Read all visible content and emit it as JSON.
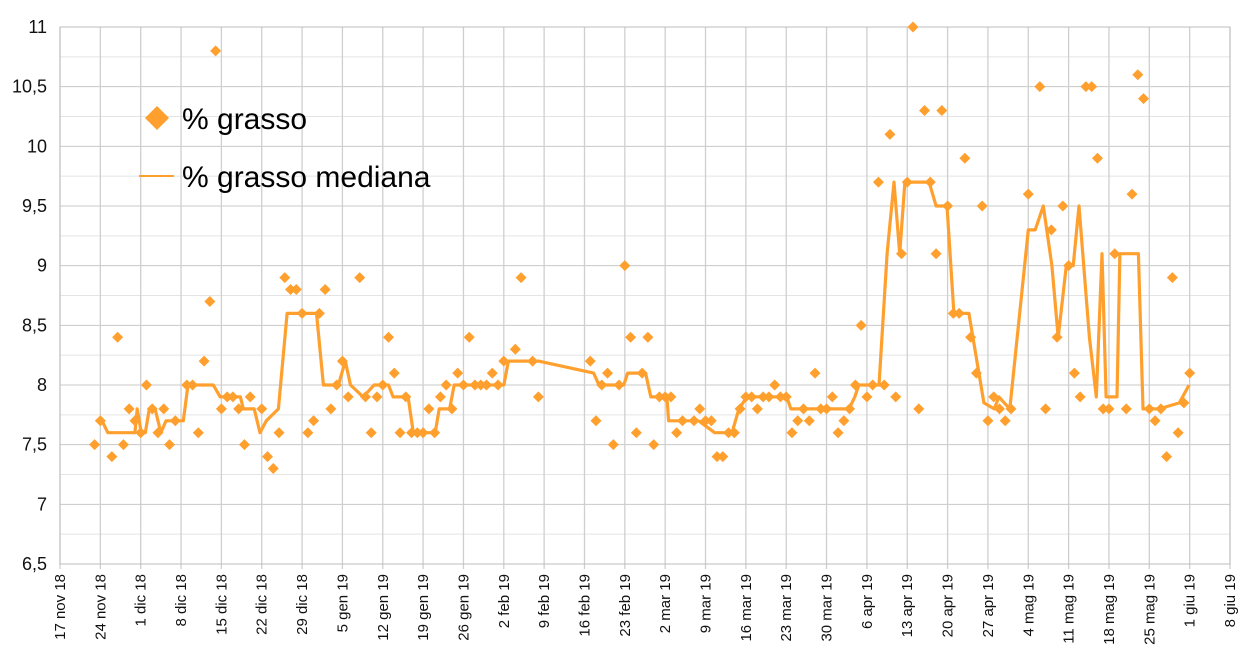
{
  "chart_data": {
    "type": "scatter+line",
    "title": "",
    "xlabel": "",
    "ylabel": "",
    "x_unit": "days since 17 nov 18",
    "xlim": [
      0,
      203
    ],
    "ylim": [
      6.5,
      11
    ],
    "grid": true,
    "legend_position": "top-left",
    "accent_color": "#ffa02e",
    "y_ticks": [
      {
        "value": 6.5,
        "label": "6,5"
      },
      {
        "value": 7,
        "label": "7"
      },
      {
        "value": 7.5,
        "label": "7,5"
      },
      {
        "value": 8,
        "label": "8"
      },
      {
        "value": 8.5,
        "label": "8,5"
      },
      {
        "value": 9,
        "label": "9"
      },
      {
        "value": 9.5,
        "label": "9,5"
      },
      {
        "value": 10,
        "label": "10"
      },
      {
        "value": 10.5,
        "label": "10,5"
      },
      {
        "value": 11,
        "label": "11"
      }
    ],
    "x_ticks": [
      {
        "value": 0,
        "label": "17 nov 18"
      },
      {
        "value": 7,
        "label": "24 nov 18"
      },
      {
        "value": 14,
        "label": "1 dic 18"
      },
      {
        "value": 21,
        "label": "8 dic 18"
      },
      {
        "value": 28,
        "label": "15 dic 18"
      },
      {
        "value": 35,
        "label": "22 dic 18"
      },
      {
        "value": 42,
        "label": "29 dic 18"
      },
      {
        "value": 49,
        "label": "5 gen 19"
      },
      {
        "value": 56,
        "label": "12 gen 19"
      },
      {
        "value": 63,
        "label": "19 gen 19"
      },
      {
        "value": 70,
        "label": "26 gen 19"
      },
      {
        "value": 77,
        "label": "2 feb 19"
      },
      {
        "value": 84,
        "label": "9 feb 19"
      },
      {
        "value": 91,
        "label": "16 feb 19"
      },
      {
        "value": 98,
        "label": "23 feb 19"
      },
      {
        "value": 105,
        "label": "2 mar 19"
      },
      {
        "value": 112,
        "label": "9 mar 19"
      },
      {
        "value": 119,
        "label": "16 mar 19"
      },
      {
        "value": 126,
        "label": "23 mar 19"
      },
      {
        "value": 133,
        "label": "30 mar 19"
      },
      {
        "value": 140,
        "label": "6 apr 19"
      },
      {
        "value": 147,
        "label": "13 apr 19"
      },
      {
        "value": 154,
        "label": "20 apr 19"
      },
      {
        "value": 161,
        "label": "27 apr 19"
      },
      {
        "value": 168,
        "label": "4 mag 19"
      },
      {
        "value": 175,
        "label": "11 mag 19"
      },
      {
        "value": 182,
        "label": "18 mag 19"
      },
      {
        "value": 189,
        "label": "25 mag 19"
      },
      {
        "value": 196,
        "label": "1 giu 19"
      },
      {
        "value": 203,
        "label": "8 giu 19"
      }
    ],
    "series": [
      {
        "name": "% grasso",
        "kind": "scatter",
        "marker": "diamond",
        "points": [
          [
            6,
            7.5
          ],
          [
            7,
            7.7
          ],
          [
            9,
            7.4
          ],
          [
            10,
            8.4
          ],
          [
            11,
            7.5
          ],
          [
            12,
            7.8
          ],
          [
            13,
            7.7
          ],
          [
            14,
            7.6
          ],
          [
            15,
            8.0
          ],
          [
            16,
            7.8
          ],
          [
            17,
            7.6
          ],
          [
            18,
            7.8
          ],
          [
            19,
            7.5
          ],
          [
            20,
            7.7
          ],
          [
            22,
            8.0
          ],
          [
            23,
            8.0
          ],
          [
            24,
            7.6
          ],
          [
            25,
            8.2
          ],
          [
            26,
            8.7
          ],
          [
            27,
            10.8
          ],
          [
            28,
            7.8
          ],
          [
            29,
            7.9
          ],
          [
            30,
            7.9
          ],
          [
            31,
            7.8
          ],
          [
            32,
            7.5
          ],
          [
            33,
            7.9
          ],
          [
            35,
            7.8
          ],
          [
            36,
            7.4
          ],
          [
            37,
            7.3
          ],
          [
            38,
            7.6
          ],
          [
            39,
            8.9
          ],
          [
            40,
            8.8
          ],
          [
            41,
            8.8
          ],
          [
            42,
            8.6
          ],
          [
            43,
            7.6
          ],
          [
            44,
            7.7
          ],
          [
            45,
            8.6
          ],
          [
            46,
            8.8
          ],
          [
            47,
            7.8
          ],
          [
            48,
            8.0
          ],
          [
            49,
            8.2
          ],
          [
            50,
            7.9
          ],
          [
            52,
            8.9
          ],
          [
            53,
            7.9
          ],
          [
            54,
            7.6
          ],
          [
            55,
            7.9
          ],
          [
            56,
            8.0
          ],
          [
            57,
            8.4
          ],
          [
            58,
            8.1
          ],
          [
            59,
            7.6
          ],
          [
            60,
            7.9
          ],
          [
            61,
            7.6
          ],
          [
            62,
            7.6
          ],
          [
            63,
            7.6
          ],
          [
            64,
            7.8
          ],
          [
            65,
            7.6
          ],
          [
            66,
            7.9
          ],
          [
            67,
            8.0
          ],
          [
            68,
            7.8
          ],
          [
            69,
            8.1
          ],
          [
            70,
            8.0
          ],
          [
            71,
            8.4
          ],
          [
            72,
            8.0
          ],
          [
            73,
            8.0
          ],
          [
            74,
            8.0
          ],
          [
            75,
            8.1
          ],
          [
            76,
            8.0
          ],
          [
            77,
            8.2
          ],
          [
            79,
            8.3
          ],
          [
            80,
            8.9
          ],
          [
            82,
            8.2
          ],
          [
            83,
            7.9
          ],
          [
            92,
            8.2
          ],
          [
            93,
            7.7
          ],
          [
            94,
            8.0
          ],
          [
            95,
            8.1
          ],
          [
            96,
            7.5
          ],
          [
            97,
            8.0
          ],
          [
            98,
            9.0
          ],
          [
            99,
            8.4
          ],
          [
            100,
            7.6
          ],
          [
            101,
            8.1
          ],
          [
            102,
            8.4
          ],
          [
            103,
            7.5
          ],
          [
            104,
            7.9
          ],
          [
            105,
            7.9
          ],
          [
            106,
            7.9
          ],
          [
            107,
            7.6
          ],
          [
            108,
            7.7
          ],
          [
            110,
            7.7
          ],
          [
            111,
            7.8
          ],
          [
            112,
            7.7
          ],
          [
            113,
            7.7
          ],
          [
            114,
            7.4
          ],
          [
            115,
            7.4
          ],
          [
            116,
            7.6
          ],
          [
            117,
            7.6
          ],
          [
            118,
            7.8
          ],
          [
            119,
            7.9
          ],
          [
            120,
            7.9
          ],
          [
            121,
            7.8
          ],
          [
            122,
            7.9
          ],
          [
            123,
            7.9
          ],
          [
            124,
            8.0
          ],
          [
            125,
            7.9
          ],
          [
            126,
            7.9
          ],
          [
            127,
            7.6
          ],
          [
            128,
            7.7
          ],
          [
            129,
            7.8
          ],
          [
            130,
            7.7
          ],
          [
            131,
            8.1
          ],
          [
            132,
            7.8
          ],
          [
            133,
            7.8
          ],
          [
            134,
            7.9
          ],
          [
            135,
            7.6
          ],
          [
            136,
            7.7
          ],
          [
            137,
            7.8
          ],
          [
            138,
            8.0
          ],
          [
            139,
            8.5
          ],
          [
            140,
            7.9
          ],
          [
            141,
            8.0
          ],
          [
            142,
            9.7
          ],
          [
            143,
            8.0
          ],
          [
            144,
            10.1
          ],
          [
            145,
            7.9
          ],
          [
            146,
            9.1
          ],
          [
            147,
            9.7
          ],
          [
            148,
            11.0
          ],
          [
            149,
            7.8
          ],
          [
            150,
            10.3
          ],
          [
            151,
            9.7
          ],
          [
            152,
            9.1
          ],
          [
            153,
            10.3
          ],
          [
            154,
            9.5
          ],
          [
            155,
            8.6
          ],
          [
            156,
            8.6
          ],
          [
            157,
            9.9
          ],
          [
            158,
            8.4
          ],
          [
            159,
            8.1
          ],
          [
            160,
            9.5
          ],
          [
            161,
            7.7
          ],
          [
            162,
            7.9
          ],
          [
            163,
            7.8
          ],
          [
            164,
            7.7
          ],
          [
            165,
            7.8
          ],
          [
            168,
            9.6
          ],
          [
            170,
            10.5
          ],
          [
            171,
            7.8
          ],
          [
            172,
            9.3
          ],
          [
            173,
            8.4
          ],
          [
            174,
            9.5
          ],
          [
            175,
            9.0
          ],
          [
            176,
            8.1
          ],
          [
            177,
            7.9
          ],
          [
            178,
            10.5
          ],
          [
            179,
            10.5
          ],
          [
            180,
            9.9
          ],
          [
            181,
            7.8
          ],
          [
            182,
            7.8
          ],
          [
            183,
            9.1
          ],
          [
            185,
            7.8
          ],
          [
            186,
            9.6
          ],
          [
            187,
            10.6
          ],
          [
            188,
            10.4
          ],
          [
            189,
            7.8
          ],
          [
            190,
            7.7
          ],
          [
            191,
            7.8
          ],
          [
            192,
            7.4
          ],
          [
            193,
            8.9
          ],
          [
            194,
            7.6
          ],
          [
            195,
            7.85
          ],
          [
            196,
            8.1
          ]
        ]
      },
      {
        "name": "% grasso mediana",
        "kind": "line",
        "points": [
          [
            7.3,
            7.7
          ],
          [
            8.3,
            7.6
          ],
          [
            13.0,
            7.6
          ],
          [
            13.4,
            7.8
          ],
          [
            14.1,
            7.6
          ],
          [
            14.8,
            7.6
          ],
          [
            15.5,
            7.8
          ],
          [
            16.5,
            7.8
          ],
          [
            17.5,
            7.6
          ],
          [
            18.4,
            7.7
          ],
          [
            21.4,
            7.7
          ],
          [
            22.2,
            8.0
          ],
          [
            26.6,
            8.0
          ],
          [
            27.8,
            7.9
          ],
          [
            31.3,
            7.9
          ],
          [
            31.8,
            7.8
          ],
          [
            33.7,
            7.8
          ],
          [
            34.7,
            7.6
          ],
          [
            35.8,
            7.7
          ],
          [
            37.9,
            7.8
          ],
          [
            39.4,
            8.6
          ],
          [
            44.5,
            8.6
          ],
          [
            45.7,
            8.0
          ],
          [
            48.3,
            8.0
          ],
          [
            49.5,
            8.2
          ],
          [
            50.4,
            8.0
          ],
          [
            52.6,
            7.9
          ],
          [
            54.5,
            8.0
          ],
          [
            57.0,
            8.0
          ],
          [
            57.8,
            7.9
          ],
          [
            60.4,
            7.9
          ],
          [
            61.3,
            7.6
          ],
          [
            65.1,
            7.6
          ],
          [
            65.8,
            7.8
          ],
          [
            67.6,
            7.8
          ],
          [
            68.4,
            8.0
          ],
          [
            77.0,
            8.0
          ],
          [
            77.8,
            8.2
          ],
          [
            83.0,
            8.2
          ],
          [
            92.6,
            8.1
          ],
          [
            93.5,
            8.0
          ],
          [
            97.8,
            8.0
          ],
          [
            98.5,
            8.1
          ],
          [
            101.6,
            8.1
          ],
          [
            102.5,
            7.9
          ],
          [
            105.3,
            7.9
          ],
          [
            105.6,
            7.7
          ],
          [
            110.8,
            7.7
          ],
          [
            113.6,
            7.6
          ],
          [
            116.6,
            7.6
          ],
          [
            117.8,
            7.8
          ],
          [
            119.2,
            7.9
          ],
          [
            126.1,
            7.9
          ],
          [
            126.8,
            7.8
          ],
          [
            136.9,
            7.8
          ],
          [
            137.9,
            7.9
          ],
          [
            138.6,
            8.0
          ],
          [
            142.1,
            8.0
          ],
          [
            143.5,
            9.1
          ],
          [
            144.7,
            9.7
          ],
          [
            145.7,
            9.1
          ],
          [
            146.6,
            9.7
          ],
          [
            150.8,
            9.7
          ],
          [
            152.0,
            9.5
          ],
          [
            153.9,
            9.5
          ],
          [
            155.1,
            8.6
          ],
          [
            157.7,
            8.6
          ],
          [
            160.3,
            7.85
          ],
          [
            162.1,
            7.8
          ],
          [
            162.9,
            7.9
          ],
          [
            164.8,
            7.8
          ],
          [
            168.0,
            9.3
          ],
          [
            169.2,
            9.3
          ],
          [
            170.6,
            9.5
          ],
          [
            172.1,
            9.0
          ],
          [
            173.2,
            8.4
          ],
          [
            174.6,
            9.0
          ],
          [
            175.8,
            9.0
          ],
          [
            176.8,
            9.5
          ],
          [
            178.6,
            8.4
          ],
          [
            179.8,
            7.9
          ],
          [
            180.8,
            9.1
          ],
          [
            181.5,
            7.9
          ],
          [
            183.4,
            7.9
          ],
          [
            183.9,
            9.1
          ],
          [
            187.1,
            9.1
          ],
          [
            187.9,
            7.8
          ],
          [
            190.7,
            7.8
          ],
          [
            194.2,
            7.85
          ],
          [
            195.9,
            8.0
          ]
        ]
      }
    ]
  }
}
